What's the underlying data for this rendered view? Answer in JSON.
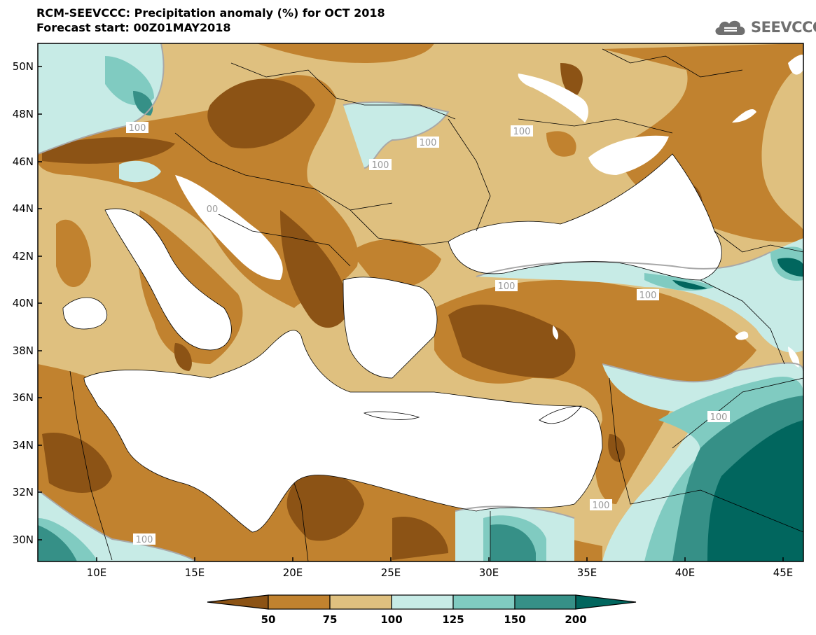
{
  "header": {
    "title": "RCM-SEEVCCC: Precipitation anomaly (%) for OCT 2018",
    "subtitle": "Forecast start: 00Z01MAY2018"
  },
  "logo": {
    "text": "SEEVCCC",
    "icon": "cloud-logo-icon",
    "color": "#6f6f6f"
  },
  "map": {
    "lon_range": [
      7,
      46
    ],
    "lat_range": [
      29,
      51
    ],
    "lat_ticks": [
      "50N",
      "48N",
      "46N",
      "44N",
      "42N",
      "40N",
      "38N",
      "36N",
      "34N",
      "32N",
      "30N"
    ],
    "lon_ticks": [
      "10E",
      "15E",
      "20E",
      "25E",
      "30E",
      "35E",
      "40E",
      "45E"
    ],
    "contour_labels": [
      "100",
      "100",
      "100",
      "100",
      "100",
      "100",
      "100",
      "100",
      "100",
      "100",
      "100"
    ],
    "partial_label": "00"
  },
  "colorbar": {
    "levels": [
      "50",
      "75",
      "100",
      "125",
      "150",
      "200"
    ],
    "colors": [
      "#8c5315",
      "#c1822f",
      "#dfc07f",
      "#c7ebe6",
      "#80cbc1",
      "#369087",
      "#01665e"
    ]
  }
}
